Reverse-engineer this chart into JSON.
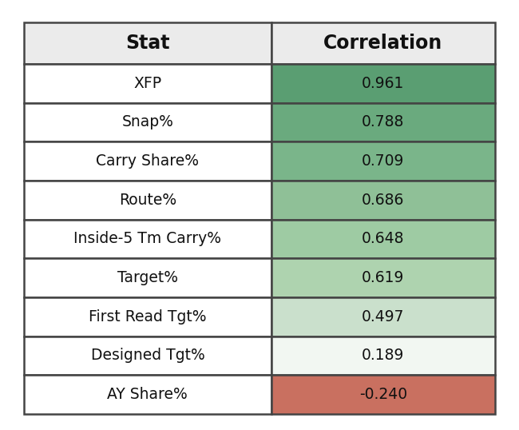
{
  "stats": [
    "XFP",
    "Snap%",
    "Carry Share%",
    "Route%",
    "Inside-5 Tm Carry%",
    "Target%",
    "First Read Tgt%",
    "Designed Tgt%",
    "AY Share%"
  ],
  "corr_display": [
    "0.961",
    "0.788",
    "0.709",
    "0.686",
    "0.648",
    "0.619",
    "0.497",
    "0.189",
    "-0.240"
  ],
  "header_stat": "Stat",
  "header_corr": "Correlation",
  "header_bg": "#ebebeb",
  "stat_col_bg": "#ffffff",
  "corr_colors": [
    "#5a9e72",
    "#6aaa7e",
    "#7ab58a",
    "#8fc097",
    "#9ecba3",
    "#aed3af",
    "#cae0cc",
    "#f2f7f2",
    "#c97060"
  ],
  "border_color": "#444444",
  "text_color": "#111111",
  "bg_color": "#ffffff"
}
